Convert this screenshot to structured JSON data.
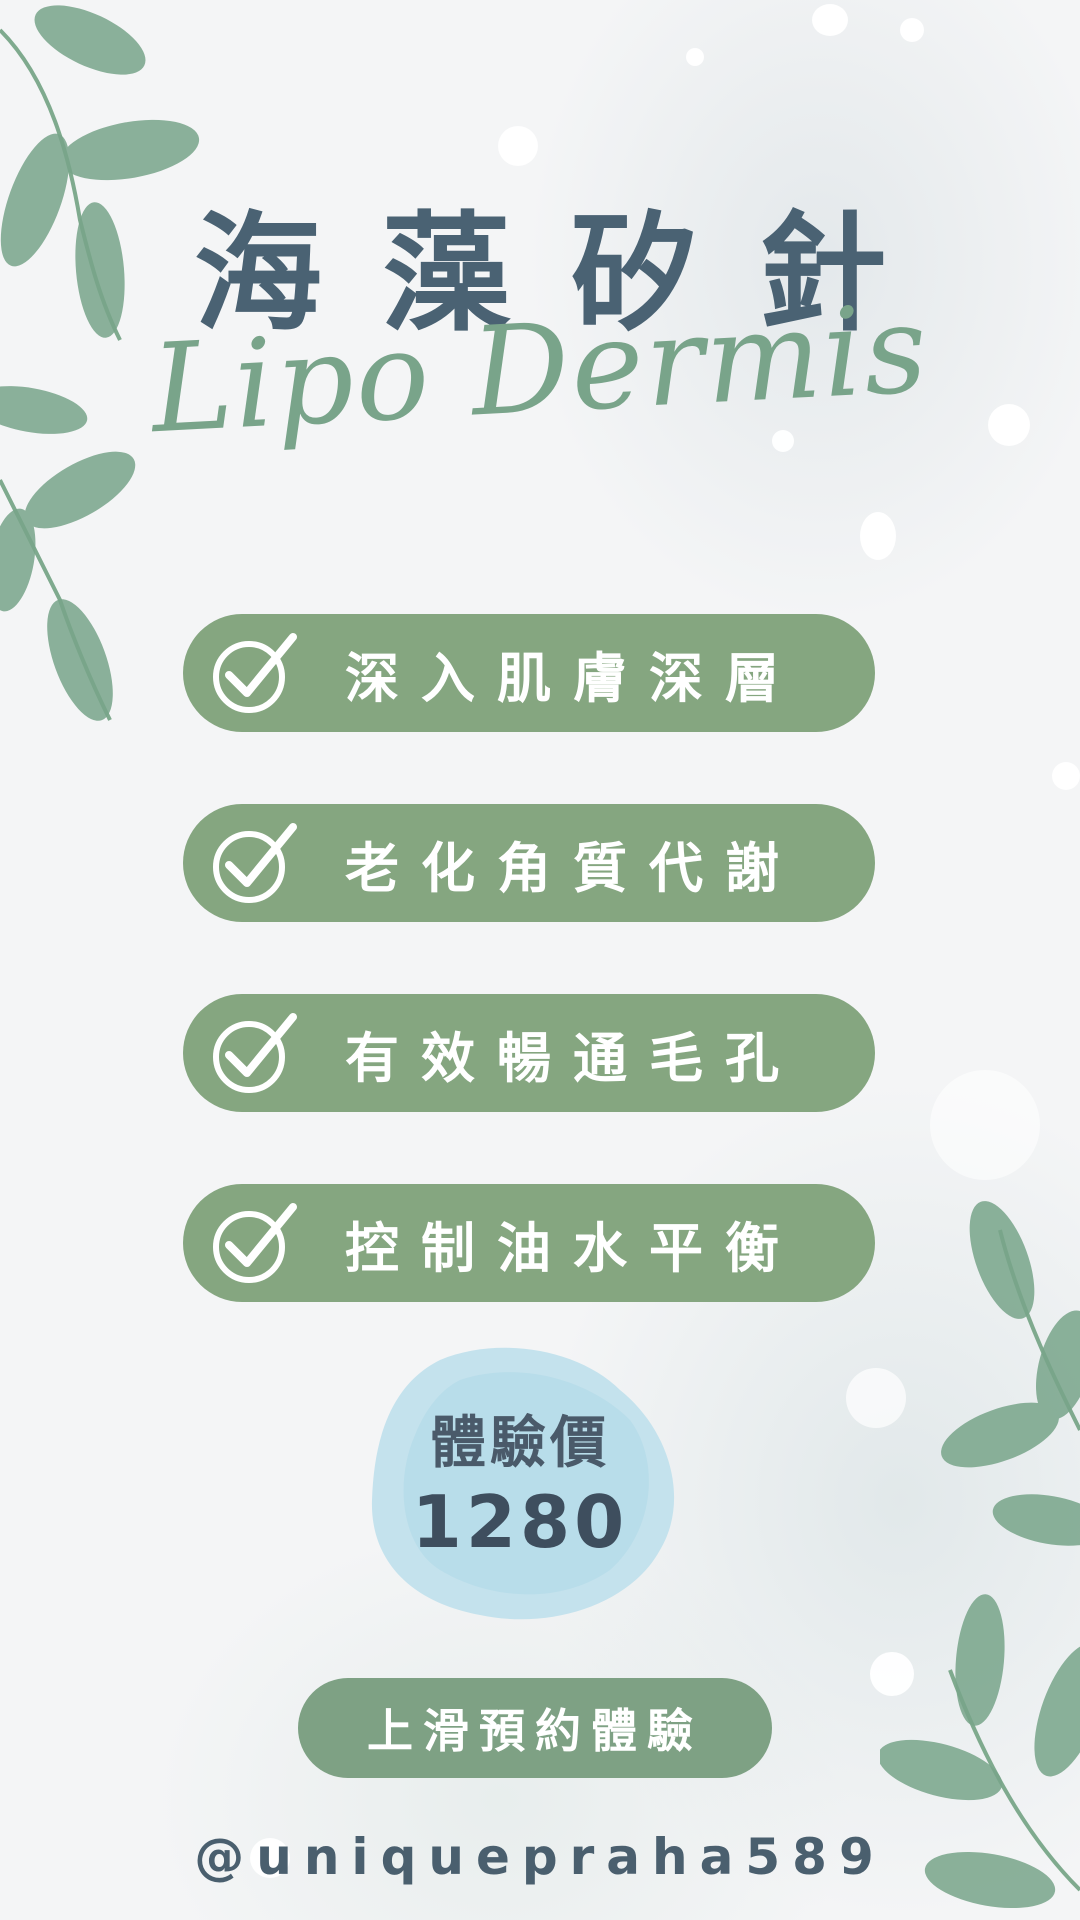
{
  "colors": {
    "title": "#4a6273",
    "subtitle": "#79a48a",
    "pill": "#85a680",
    "cta": "#7ea184",
    "price_blob": "#bfe0ec"
  },
  "header": {
    "title": "海藻矽針",
    "subtitle": "Lipo Dermis"
  },
  "features": [
    {
      "label": "深入肌膚深層",
      "icon": "check-circle-icon"
    },
    {
      "label": "老化角質代謝",
      "icon": "check-circle-icon"
    },
    {
      "label": "有效暢通毛孔",
      "icon": "check-circle-icon"
    },
    {
      "label": "控制油水平衡",
      "icon": "check-circle-icon"
    }
  ],
  "price": {
    "label": "體驗價",
    "value": "1280"
  },
  "cta": {
    "label": "上滑預約體驗"
  },
  "footer": {
    "handle": "@uniquepraha589"
  }
}
